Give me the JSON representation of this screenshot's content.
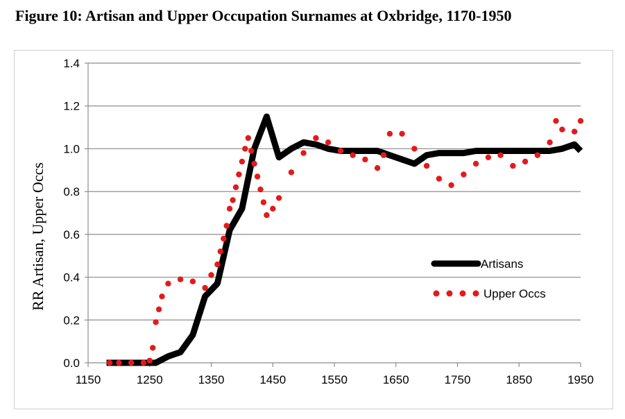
{
  "figure_title": "Figure 10: Artisan and Upper Occupation Surnames at Oxbridge, 1170-1950",
  "chart_data": {
    "type": "line",
    "title": "Figure 10: Artisan and Upper Occupation Surnames at Oxbridge, 1170-1950",
    "xlabel": "",
    "ylabel": "RR Artisan, Upper Occs",
    "xlim": [
      1150,
      1950
    ],
    "ylim": [
      0,
      1.4
    ],
    "xticks": [
      1150,
      1250,
      1350,
      1450,
      1550,
      1650,
      1750,
      1850,
      1950
    ],
    "yticks": [
      0.0,
      0.2,
      0.4,
      0.6,
      0.8,
      1.0,
      1.2,
      1.4
    ],
    "ytick_labels": [
      "0.0",
      "0.2",
      "0.4",
      "0.6",
      "0.8",
      "1.0",
      "1.2",
      "1.4"
    ],
    "grid": "horizontal",
    "legend_position": "right",
    "series": [
      {
        "name": "Artisans",
        "style": "solid-thick",
        "color": "#000000",
        "x": [
          1180,
          1260,
          1280,
          1300,
          1320,
          1340,
          1360,
          1380,
          1400,
          1420,
          1440,
          1460,
          1480,
          1500,
          1520,
          1540,
          1560,
          1580,
          1600,
          1620,
          1640,
          1660,
          1680,
          1700,
          1720,
          1740,
          1760,
          1780,
          1800,
          1820,
          1840,
          1860,
          1880,
          1900,
          1920,
          1940,
          1950
        ],
        "y": [
          0.0,
          0.0,
          0.03,
          0.05,
          0.13,
          0.31,
          0.37,
          0.62,
          0.72,
          1.0,
          1.15,
          0.96,
          1.0,
          1.03,
          1.02,
          1.0,
          0.99,
          0.99,
          0.99,
          0.99,
          0.97,
          0.95,
          0.93,
          0.97,
          0.98,
          0.98,
          0.98,
          0.99,
          0.99,
          0.99,
          0.99,
          0.99,
          0.99,
          0.99,
          1.0,
          1.02,
          0.99
        ]
      },
      {
        "name": "Upper Occs",
        "style": "dotted",
        "color": "#e31a1c",
        "x": [
          1185,
          1200,
          1220,
          1240,
          1250,
          1255,
          1260,
          1265,
          1270,
          1280,
          1300,
          1320,
          1340,
          1350,
          1360,
          1365,
          1370,
          1375,
          1380,
          1385,
          1390,
          1395,
          1400,
          1405,
          1410,
          1415,
          1420,
          1425,
          1430,
          1435,
          1440,
          1450,
          1460,
          1480,
          1500,
          1520,
          1540,
          1560,
          1580,
          1600,
          1620,
          1630,
          1640,
          1660,
          1680,
          1700,
          1720,
          1740,
          1760,
          1780,
          1800,
          1820,
          1840,
          1860,
          1880,
          1900,
          1910,
          1920,
          1940,
          1950
        ],
        "y": [
          0.0,
          0.0,
          0.0,
          0.0,
          0.01,
          0.07,
          0.19,
          0.25,
          0.31,
          0.37,
          0.39,
          0.38,
          0.35,
          0.41,
          0.46,
          0.52,
          0.58,
          0.64,
          0.72,
          0.76,
          0.82,
          0.88,
          0.94,
          1.0,
          1.05,
          0.99,
          0.93,
          0.87,
          0.81,
          0.75,
          0.69,
          0.72,
          0.77,
          0.89,
          0.98,
          1.05,
          1.03,
          0.99,
          0.97,
          0.95,
          0.91,
          0.97,
          1.07,
          1.07,
          1.0,
          0.92,
          0.86,
          0.83,
          0.88,
          0.93,
          0.96,
          0.97,
          0.92,
          0.94,
          0.97,
          1.03,
          1.13,
          1.09,
          1.08,
          1.13
        ]
      }
    ]
  }
}
